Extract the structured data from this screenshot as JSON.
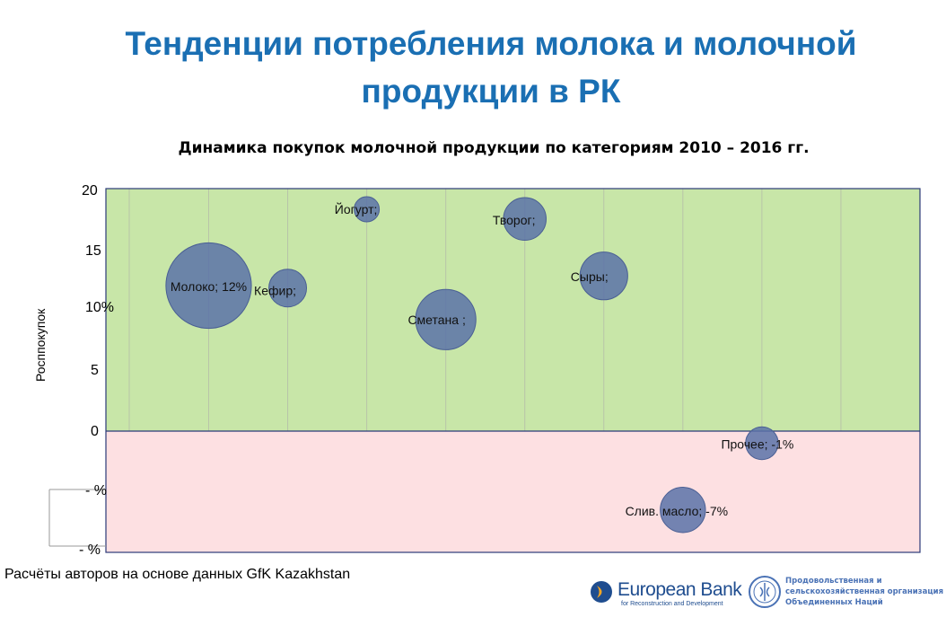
{
  "title": {
    "line1": "Тенденции потребления молока и молочной",
    "line2": "продукции в РК"
  },
  "chart_title": "Динамика покупок молочной продукции по категориям 2010 – 2016 гг.",
  "source": "Расчёты авторов на основе данных GfK Kazakhstan",
  "logos": {
    "ebrd_name": "European Bank",
    "ebrd_sub": "for Reconstruction and Development",
    "fao_line1": "Продовольственная и",
    "fao_line2": "сельскохозяйственная организация",
    "fao_line3": "Объединенных Наций"
  },
  "colors": {
    "positive_zone": "#c8e6a8",
    "negative_zone": "#fde0e2",
    "bubble": "#5a72a8",
    "title": "#1a6fb3"
  },
  "chart_data": {
    "type": "bubble",
    "ylabel": "Росппокупок",
    "ylim": [
      -10,
      20
    ],
    "xlim": [
      0,
      10.3
    ],
    "y_ticks": [
      "20",
      "15",
      "10%",
      "5",
      "0",
      "- %",
      "- %"
    ],
    "points": [
      {
        "label": "Молоко; 12%",
        "x": 1.3,
        "y": 12,
        "size": 3.4
      },
      {
        "label": "Кефир;",
        "x": 2.3,
        "y": 11.8,
        "size": 1.5
      },
      {
        "label": "Йогурт;",
        "x": 3.3,
        "y": 18.3,
        "size": 1.0
      },
      {
        "label": "Сметана ;",
        "x": 4.3,
        "y": 9.2,
        "size": 2.4
      },
      {
        "label": "Творог;",
        "x": 5.3,
        "y": 17.5,
        "size": 1.7
      },
      {
        "label": "Сыры;",
        "x": 6.3,
        "y": 12.8,
        "size": 1.9
      },
      {
        "label": "Прочее; -1%",
        "x": 8.3,
        "y": -1,
        "size": 1.3
      },
      {
        "label": "Слив. масло; -7%",
        "x": 7.3,
        "y": -6.5,
        "size": 1.8
      }
    ]
  }
}
